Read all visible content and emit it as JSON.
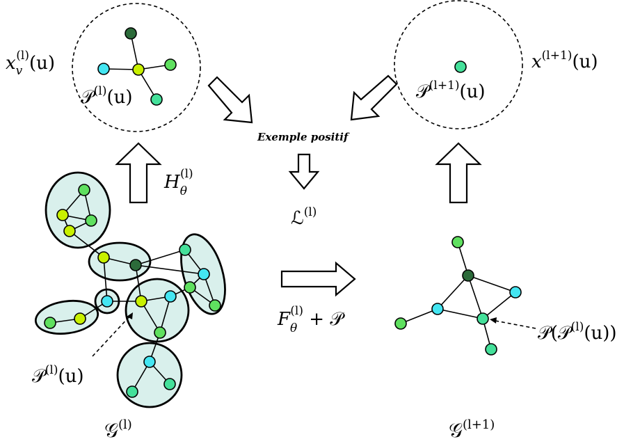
{
  "colors": {
    "yellow_green": "#c8f000",
    "light_green": "#5fe05f",
    "mint": "#44e09a",
    "cyan": "#44e6f2",
    "dark_green": "#2c6b3a",
    "group_fill": "#d9f0ec"
  },
  "labels": {
    "xv_l_u": {
      "base": "x",
      "sub": "v",
      "sup": "(l)",
      "arg": "(u)"
    },
    "P_l_u_top": {
      "base": "𝒫",
      "sup": "(l)",
      "arg": "(u)"
    },
    "x_l1_u": {
      "base": "x",
      "sup": "(l+1)",
      "arg": "(u)"
    },
    "P_l1_u": {
      "base": "𝒫",
      "sup": "(l+1)",
      "arg": "(u)"
    },
    "H_theta_l": {
      "base": "H",
      "sub": "θ",
      "sup": "(l)"
    },
    "exemple_positif": "Exemple positif",
    "L_l": {
      "base": "ℒ",
      "sup": "(l)"
    },
    "F_theta_l_plus_P": {
      "base": "F",
      "sub": "θ",
      "sup": "(l)",
      "rest": " + 𝒫"
    },
    "P_l_u_bottom": {
      "base": "𝒫",
      "sup": "(l)",
      "arg": "(u)"
    },
    "P_of_P_l_u": {
      "prefix": "𝒫(𝒫",
      "sup": "(l)",
      "suffix": "(u))"
    },
    "G_l": {
      "base": "𝒢",
      "sup": "(l)"
    },
    "G_l1": {
      "base": "𝒢",
      "sup": "(l+1)"
    }
  }
}
